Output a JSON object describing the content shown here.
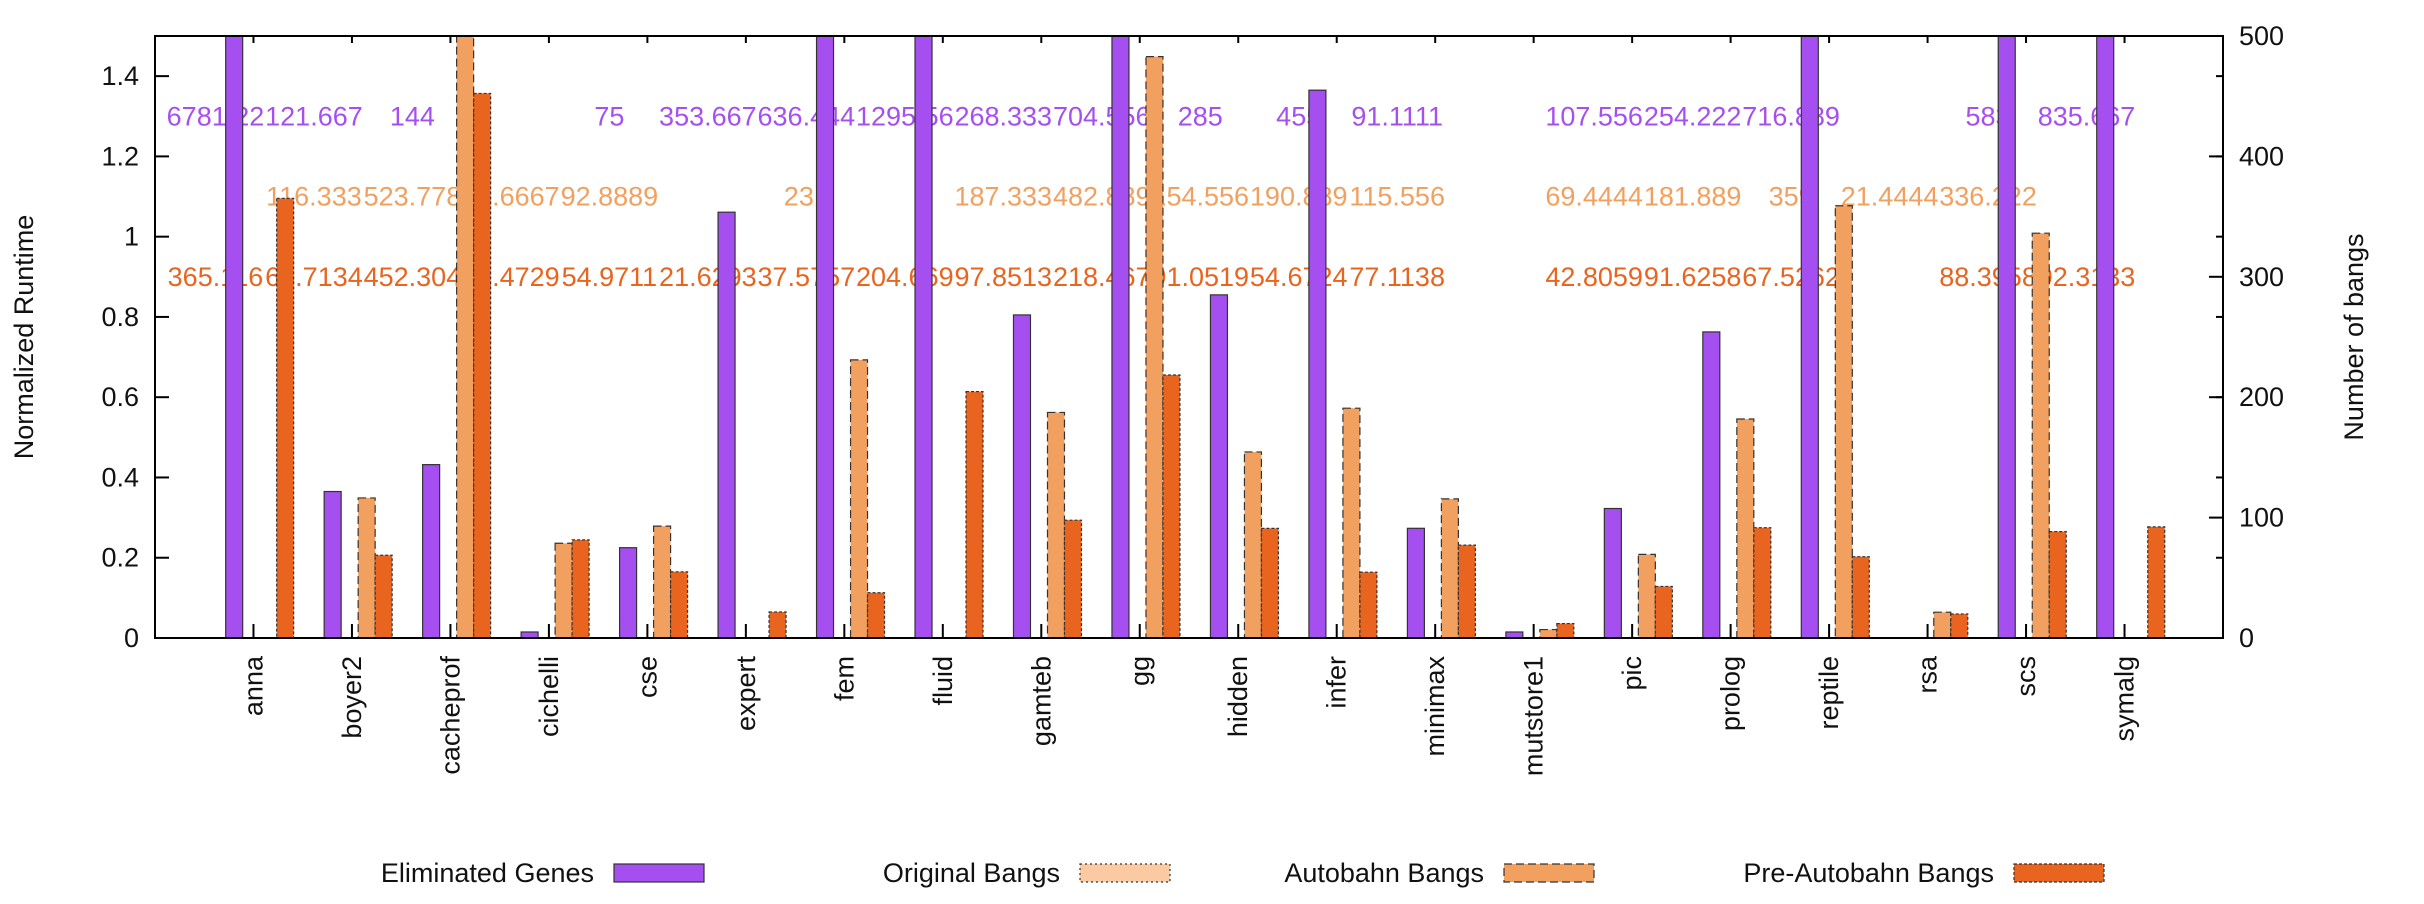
{
  "chart_data": {
    "type": "bar",
    "ylabel": "Normalized Runtime",
    "y2label": "Number of bangs",
    "categories": [
      "anna",
      "boyer2",
      "cacheprof",
      "cichelli",
      "cse",
      "expert",
      "fem",
      "fluid",
      "gamteb",
      "gg",
      "hidden",
      "infer",
      "minimax",
      "mutstore1",
      "pic",
      "prolog",
      "reptile",
      "rsa",
      "scs",
      "symalg"
    ],
    "ylim": [
      0,
      1.5
    ],
    "yticks": [
      0,
      0.2,
      0.4,
      0.6,
      0.8,
      1,
      1.2,
      1.4
    ],
    "y2lim": [
      0,
      500
    ],
    "y2ticks": [
      0,
      100,
      200,
      300,
      400,
      500
    ],
    "grid": false,
    "legend": "bottom",
    "series": [
      {
        "name": "Eliminated Genes",
        "color": "#a64ff0",
        "axis": "y2",
        "values": [
          6781.22,
          121.667,
          144,
          5,
          75,
          353.667,
          636.444,
          1295.56,
          268.333,
          704.556,
          285,
          455,
          91.1111,
          5,
          107.556,
          254.222,
          716.889,
          0,
          583,
          835.667
        ],
        "value_labels": [
          "6781.22",
          "121.667",
          "144",
          null,
          "75",
          "353.667",
          "636.444",
          "1295.56",
          "268.333",
          "704.556",
          "285",
          "455",
          "91.1111",
          null,
          "107.556",
          "254.222",
          "716.889",
          null,
          "583",
          "835.667"
        ]
      },
      {
        "name": "Original Bangs",
        "color": "#fbc9a2",
        "axis": "y2",
        "values": [
          null,
          null,
          null,
          null,
          null,
          null,
          null,
          null,
          null,
          null,
          null,
          null,
          null,
          null,
          null,
          null,
          null,
          null,
          null,
          null
        ]
      },
      {
        "name": "Autobahn Bangs",
        "color": "#f2a05f",
        "axis": "y2",
        "values": [
          null,
          116.333,
          523.778,
          78.6667,
          92.8889,
          null,
          231,
          null,
          187.333,
          482.889,
          154.556,
          190.889,
          115.556,
          7,
          69.4444,
          181.889,
          359,
          21.4444,
          336.222,
          null
        ],
        "value_labels": [
          null,
          "116.333",
          "523.778",
          "78.6667",
          "92.8889",
          null,
          "231",
          null,
          "187.333",
          "482.889",
          "154.556",
          "190.889",
          "115.556",
          null,
          "69.4444",
          "181.889",
          "359",
          "21.4444",
          "336.222",
          null
        ]
      },
      {
        "name": "Pre-Autobahn Bangs",
        "color": "#e8641f",
        "axis": "y2",
        "values": [
          365.116,
          68.7134,
          452.304,
          81.4729,
          54.9711,
          21.6293,
          37.5757,
          204.669,
          97.8513,
          218.467,
          91.0519,
          54.6724,
          77.1138,
          12,
          42.8059,
          91.6258,
          67.5262,
          20,
          88.3958,
          92.3133
        ],
        "value_labels": [
          "365.116",
          "68.7134",
          "452.304",
          "81.4729",
          "54.9711",
          "21.6293",
          "37.5757",
          "204.669",
          "97.8513",
          "218.467",
          "91.0519",
          "54.6724",
          "77.1138",
          null,
          "42.8059",
          "91.6258",
          "67.5262",
          null,
          "88.3958",
          "92.3133"
        ]
      }
    ]
  }
}
